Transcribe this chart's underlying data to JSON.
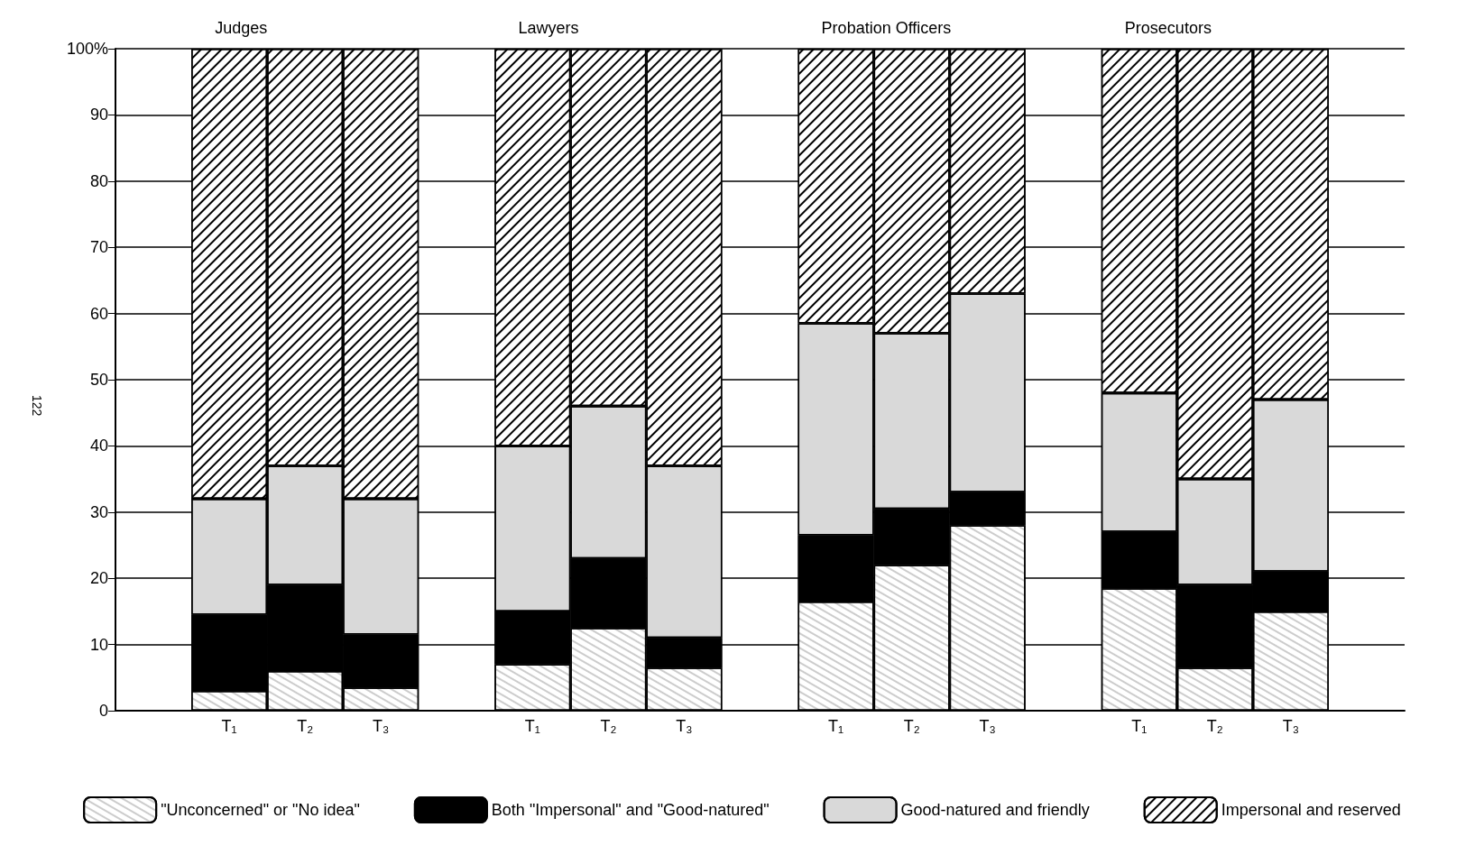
{
  "chart_data": {
    "type": "bar",
    "stacked": true,
    "categories": [
      "T₁",
      "T₂",
      "T₃",
      "T₁",
      "T₂",
      "T₃",
      "T₁",
      "T₂",
      "T₃",
      "T₁",
      "T₂",
      "T₃"
    ],
    "series": [
      {
        "name": "\"Unconcerned\" or \"No idea\"",
        "color": "#ffffff",
        "values": [
          3,
          6,
          3.5,
          7,
          12.5,
          6.5,
          16.5,
          22,
          28,
          18.5,
          6.5,
          15
        ]
      },
      {
        "name": "Both \"Impersonal\" and \"Good-natured\"",
        "color": "#000000",
        "values": [
          11.5,
          13,
          8,
          8,
          10.5,
          4.5,
          10,
          8.5,
          5,
          8.5,
          12.5,
          6
        ]
      },
      {
        "name": "Good-natured and friendly",
        "color": "#d9d9d9",
        "values": [
          17.5,
          18,
          20.5,
          25,
          23,
          26,
          32,
          26.5,
          30,
          21,
          16,
          26
        ]
      },
      {
        "name": "Impersonal and reserved",
        "color": "#ffffff",
        "values": [
          68,
          63,
          68,
          60,
          54,
          63,
          41.5,
          43,
          37,
          52,
          65,
          53
        ]
      }
    ],
    "ylim": [
      0,
      100
    ],
    "yticks": [
      0,
      10,
      20,
      30,
      40,
      50,
      60,
      70,
      80,
      90,
      {
        "value": 100,
        "label": "100%"
      }
    ],
    "grid": "y",
    "legend": "bottom",
    "annotations": [
      "Judges",
      "Lawyers",
      "Probation Officers",
      "Prosecutors",
      "122"
    ]
  }
}
